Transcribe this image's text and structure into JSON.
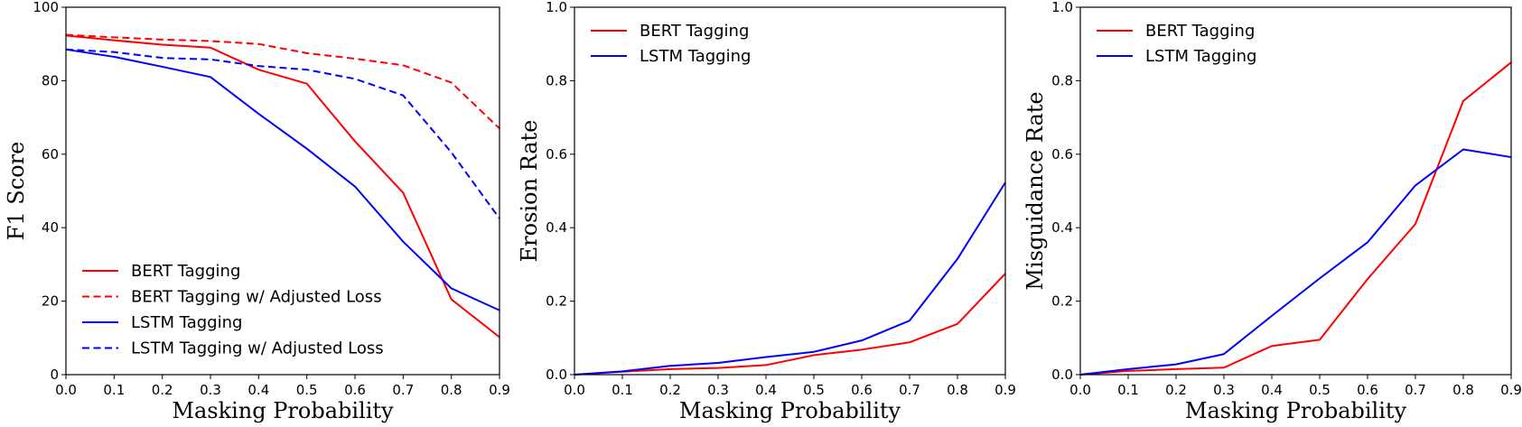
{
  "chart_data": [
    {
      "type": "line",
      "xlabel": "Masking Probability",
      "ylabel": "F1 Score",
      "xlim": [
        0,
        0.9
      ],
      "ylim": [
        0,
        100
      ],
      "xticks": [
        "0.0",
        "0.1",
        "0.2",
        "0.3",
        "0.4",
        "0.5",
        "0.6",
        "0.7",
        "0.8",
        "0.9"
      ],
      "yticks": [
        "0",
        "20",
        "40",
        "60",
        "80",
        "100"
      ],
      "x": [
        0.0,
        0.1,
        0.2,
        0.3,
        0.4,
        0.5,
        0.6,
        0.7,
        0.8,
        0.9
      ],
      "legend_position": "lower-left",
      "grid": false,
      "series": [
        {
          "name": "BERT Tagging",
          "color": "#ff0000",
          "dash": "solid",
          "values": [
            92.3,
            91.0,
            89.8,
            89.0,
            83.0,
            79.2,
            63.5,
            49.5,
            20.5,
            10.2
          ]
        },
        {
          "name": "BERT Tagging w/ Adjusted Loss",
          "color": "#ff0000",
          "dash": "dashed",
          "values": [
            92.5,
            91.8,
            91.2,
            90.8,
            90.0,
            87.5,
            86.0,
            84.2,
            79.5,
            67.0
          ]
        },
        {
          "name": "LSTM Tagging",
          "color": "#0000ff",
          "dash": "solid",
          "values": [
            88.5,
            86.5,
            83.8,
            81.0,
            71.0,
            61.5,
            51.2,
            36.2,
            23.5,
            17.5
          ]
        },
        {
          "name": "LSTM Tagging w/ Adjusted Loss",
          "color": "#0000ff",
          "dash": "dashed",
          "values": [
            88.5,
            87.8,
            86.2,
            85.8,
            84.0,
            83.0,
            80.5,
            76.0,
            60.5,
            42.5
          ]
        }
      ]
    },
    {
      "type": "line",
      "xlabel": "Masking Probability",
      "ylabel": "Erosion Rate",
      "xlim": [
        0,
        0.9
      ],
      "ylim": [
        0,
        1.0
      ],
      "xticks": [
        "0.0",
        "0.1",
        "0.2",
        "0.3",
        "0.4",
        "0.5",
        "0.6",
        "0.7",
        "0.8",
        "0.9"
      ],
      "yticks": [
        "0.0",
        "0.2",
        "0.4",
        "0.6",
        "0.8",
        "1.0"
      ],
      "x": [
        0.0,
        0.1,
        0.2,
        0.3,
        0.4,
        0.5,
        0.6,
        0.7,
        0.8,
        0.9
      ],
      "legend_position": "upper-left",
      "grid": false,
      "series": [
        {
          "name": "BERT Tagging",
          "color": "#ff0000",
          "dash": "solid",
          "values": [
            0.0,
            0.008,
            0.015,
            0.018,
            0.026,
            0.053,
            0.068,
            0.088,
            0.138,
            0.275
          ]
        },
        {
          "name": "LSTM Tagging",
          "color": "#0000ff",
          "dash": "solid",
          "values": [
            0.0,
            0.009,
            0.024,
            0.032,
            0.048,
            0.062,
            0.093,
            0.147,
            0.315,
            0.523
          ]
        }
      ]
    },
    {
      "type": "line",
      "xlabel": "Masking Probability",
      "ylabel": "Misguidance Rate",
      "xlim": [
        0,
        0.9
      ],
      "ylim": [
        0,
        1.0
      ],
      "xticks": [
        "0.0",
        "0.1",
        "0.2",
        "0.3",
        "0.4",
        "0.5",
        "0.6",
        "0.7",
        "0.8",
        "0.9"
      ],
      "yticks": [
        "0.0",
        "0.2",
        "0.4",
        "0.6",
        "0.8",
        "1.0"
      ],
      "x": [
        0.0,
        0.1,
        0.2,
        0.3,
        0.4,
        0.5,
        0.6,
        0.7,
        0.8,
        0.9
      ],
      "legend_position": "upper-left",
      "grid": false,
      "series": [
        {
          "name": "BERT Tagging",
          "color": "#ff0000",
          "dash": "solid",
          "values": [
            0.0,
            0.01,
            0.015,
            0.019,
            0.078,
            0.095,
            0.26,
            0.41,
            0.745,
            0.85
          ]
        },
        {
          "name": "LSTM Tagging",
          "color": "#0000ff",
          "dash": "solid",
          "values": [
            0.0,
            0.015,
            0.028,
            0.056,
            0.16,
            0.262,
            0.36,
            0.515,
            0.613,
            0.592
          ]
        }
      ]
    }
  ]
}
